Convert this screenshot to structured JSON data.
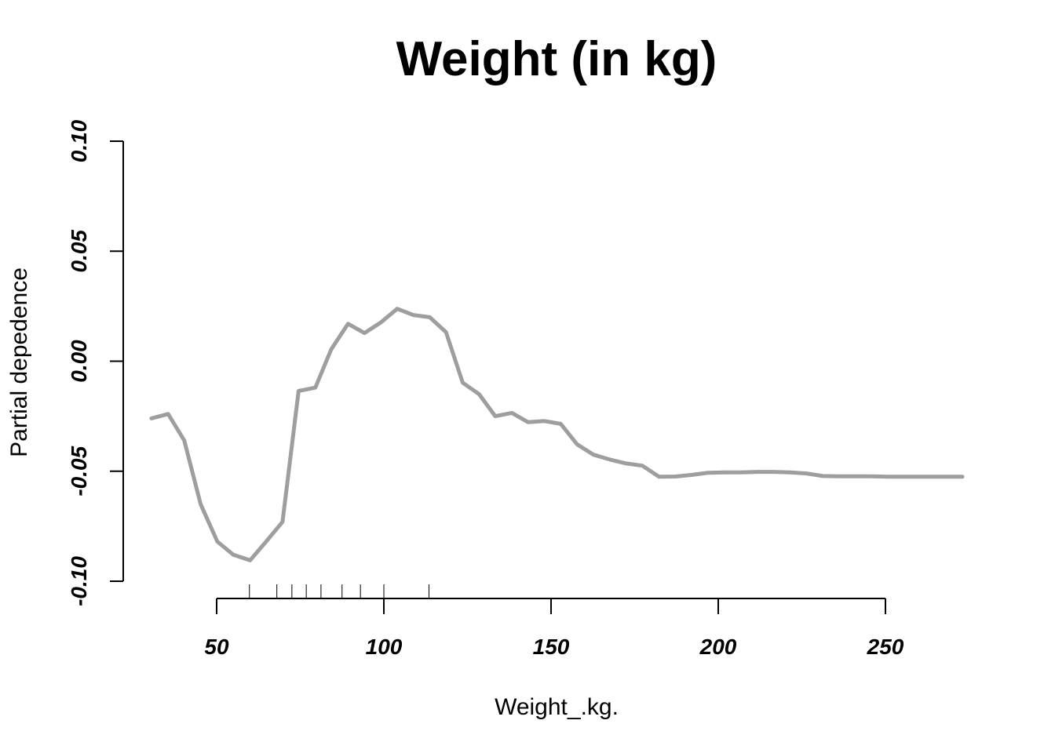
{
  "chart_data": {
    "type": "line",
    "title": "Weight (in kg)",
    "xlabel": "Weight_.kg.",
    "ylabel": "Partial depedence",
    "xlim": [
      30.5,
      273
    ],
    "ylim": [
      -0.1,
      0.1
    ],
    "x_ticks": [
      50,
      100,
      150,
      200,
      250
    ],
    "x_tick_labels": [
      "50",
      "100",
      "150",
      "200",
      "250"
    ],
    "y_ticks": [
      -0.1,
      -0.05,
      0.0,
      0.05,
      0.1
    ],
    "y_tick_labels": [
      "-0.10",
      "-0.05",
      "0.00",
      "0.05",
      "0.10"
    ],
    "grid": false,
    "rug": [
      59.8,
      68,
      72.5,
      76.8,
      81.2,
      87.5,
      93,
      100,
      113.5
    ],
    "series": [
      {
        "color": "#9e9e9e",
        "x": [
          30.5,
          35.5,
          40.3,
          45.2,
          50.2,
          55,
          60,
          64.8,
          69.7,
          74.5,
          79.5,
          84.3,
          89.3,
          94.2,
          99,
          104,
          108.8,
          113.7,
          118.6,
          123.6,
          128.5,
          133.3,
          138.3,
          143.1,
          148,
          152.9,
          157.8,
          162.7,
          167.6,
          172.5,
          177.3,
          182.3,
          187.2,
          192,
          197,
          201.9,
          206.8,
          211.7,
          216.6,
          221.5,
          226.4,
          231.3,
          236.2,
          241,
          245.9,
          250.9,
          255.8,
          260.7,
          265.6,
          273
        ],
        "y": [
          -0.026,
          -0.024,
          -0.036,
          -0.065,
          -0.082,
          -0.088,
          -0.0905,
          -0.082,
          -0.073,
          -0.0135,
          -0.012,
          0.0055,
          0.017,
          0.0128,
          0.0175,
          0.0238,
          0.021,
          0.02,
          0.0132,
          -0.0098,
          -0.015,
          -0.025,
          -0.0235,
          -0.0277,
          -0.0272,
          -0.0285,
          -0.0378,
          -0.0425,
          -0.0447,
          -0.0465,
          -0.0475,
          -0.0525,
          -0.0524,
          -0.0517,
          -0.0507,
          -0.0505,
          -0.0505,
          -0.0503,
          -0.0503,
          -0.0505,
          -0.051,
          -0.0522,
          -0.0523,
          -0.0523,
          -0.0523,
          -0.0525,
          -0.0525,
          -0.0525,
          -0.0525,
          -0.0525
        ]
      }
    ]
  }
}
